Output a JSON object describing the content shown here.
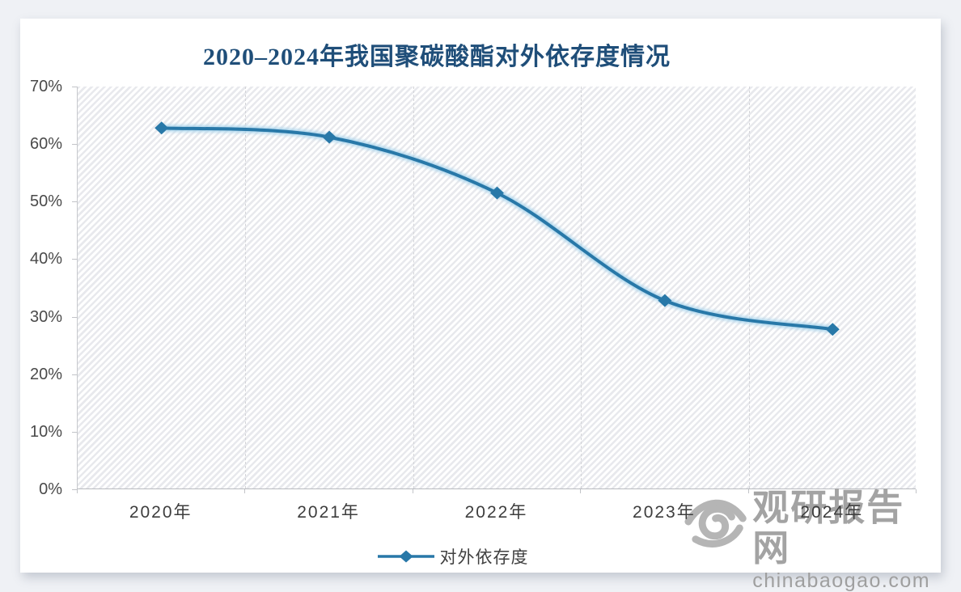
{
  "chart_data": {
    "type": "line",
    "title": "2020–2024年我国聚碳酸酯对外依存度情况",
    "categories": [
      "2020年",
      "2021年",
      "2022年",
      "2023年",
      "2024年"
    ],
    "series": [
      {
        "name": "对外依存度",
        "values": [
          62.8,
          61.2,
          51.5,
          32.8,
          27.8
        ]
      }
    ],
    "xlabel": "",
    "ylabel": "",
    "ylim": [
      0,
      70
    ],
    "ytick_step": 10,
    "ytick_format": "percent",
    "yticks": [
      "0%",
      "10%",
      "20%",
      "30%",
      "40%",
      "50%",
      "60%",
      "70%"
    ],
    "grid": "vertical-dashed",
    "legend_position": "bottom",
    "marker": "diamond",
    "smooth": true
  },
  "legend": {
    "label": "对外依存度"
  },
  "watermark": {
    "name": "观研报告网",
    "url": "chinabaogao.com"
  },
  "colors": {
    "title": "#1F4E79",
    "line": "#2878A8",
    "line_halo": "#A9D4EC",
    "axis_label": "#4a4a4a",
    "watermark_text": "#a3a3a3",
    "watermark_url": "#9f9f9f",
    "watermark_logo": "#b5b5b5"
  }
}
